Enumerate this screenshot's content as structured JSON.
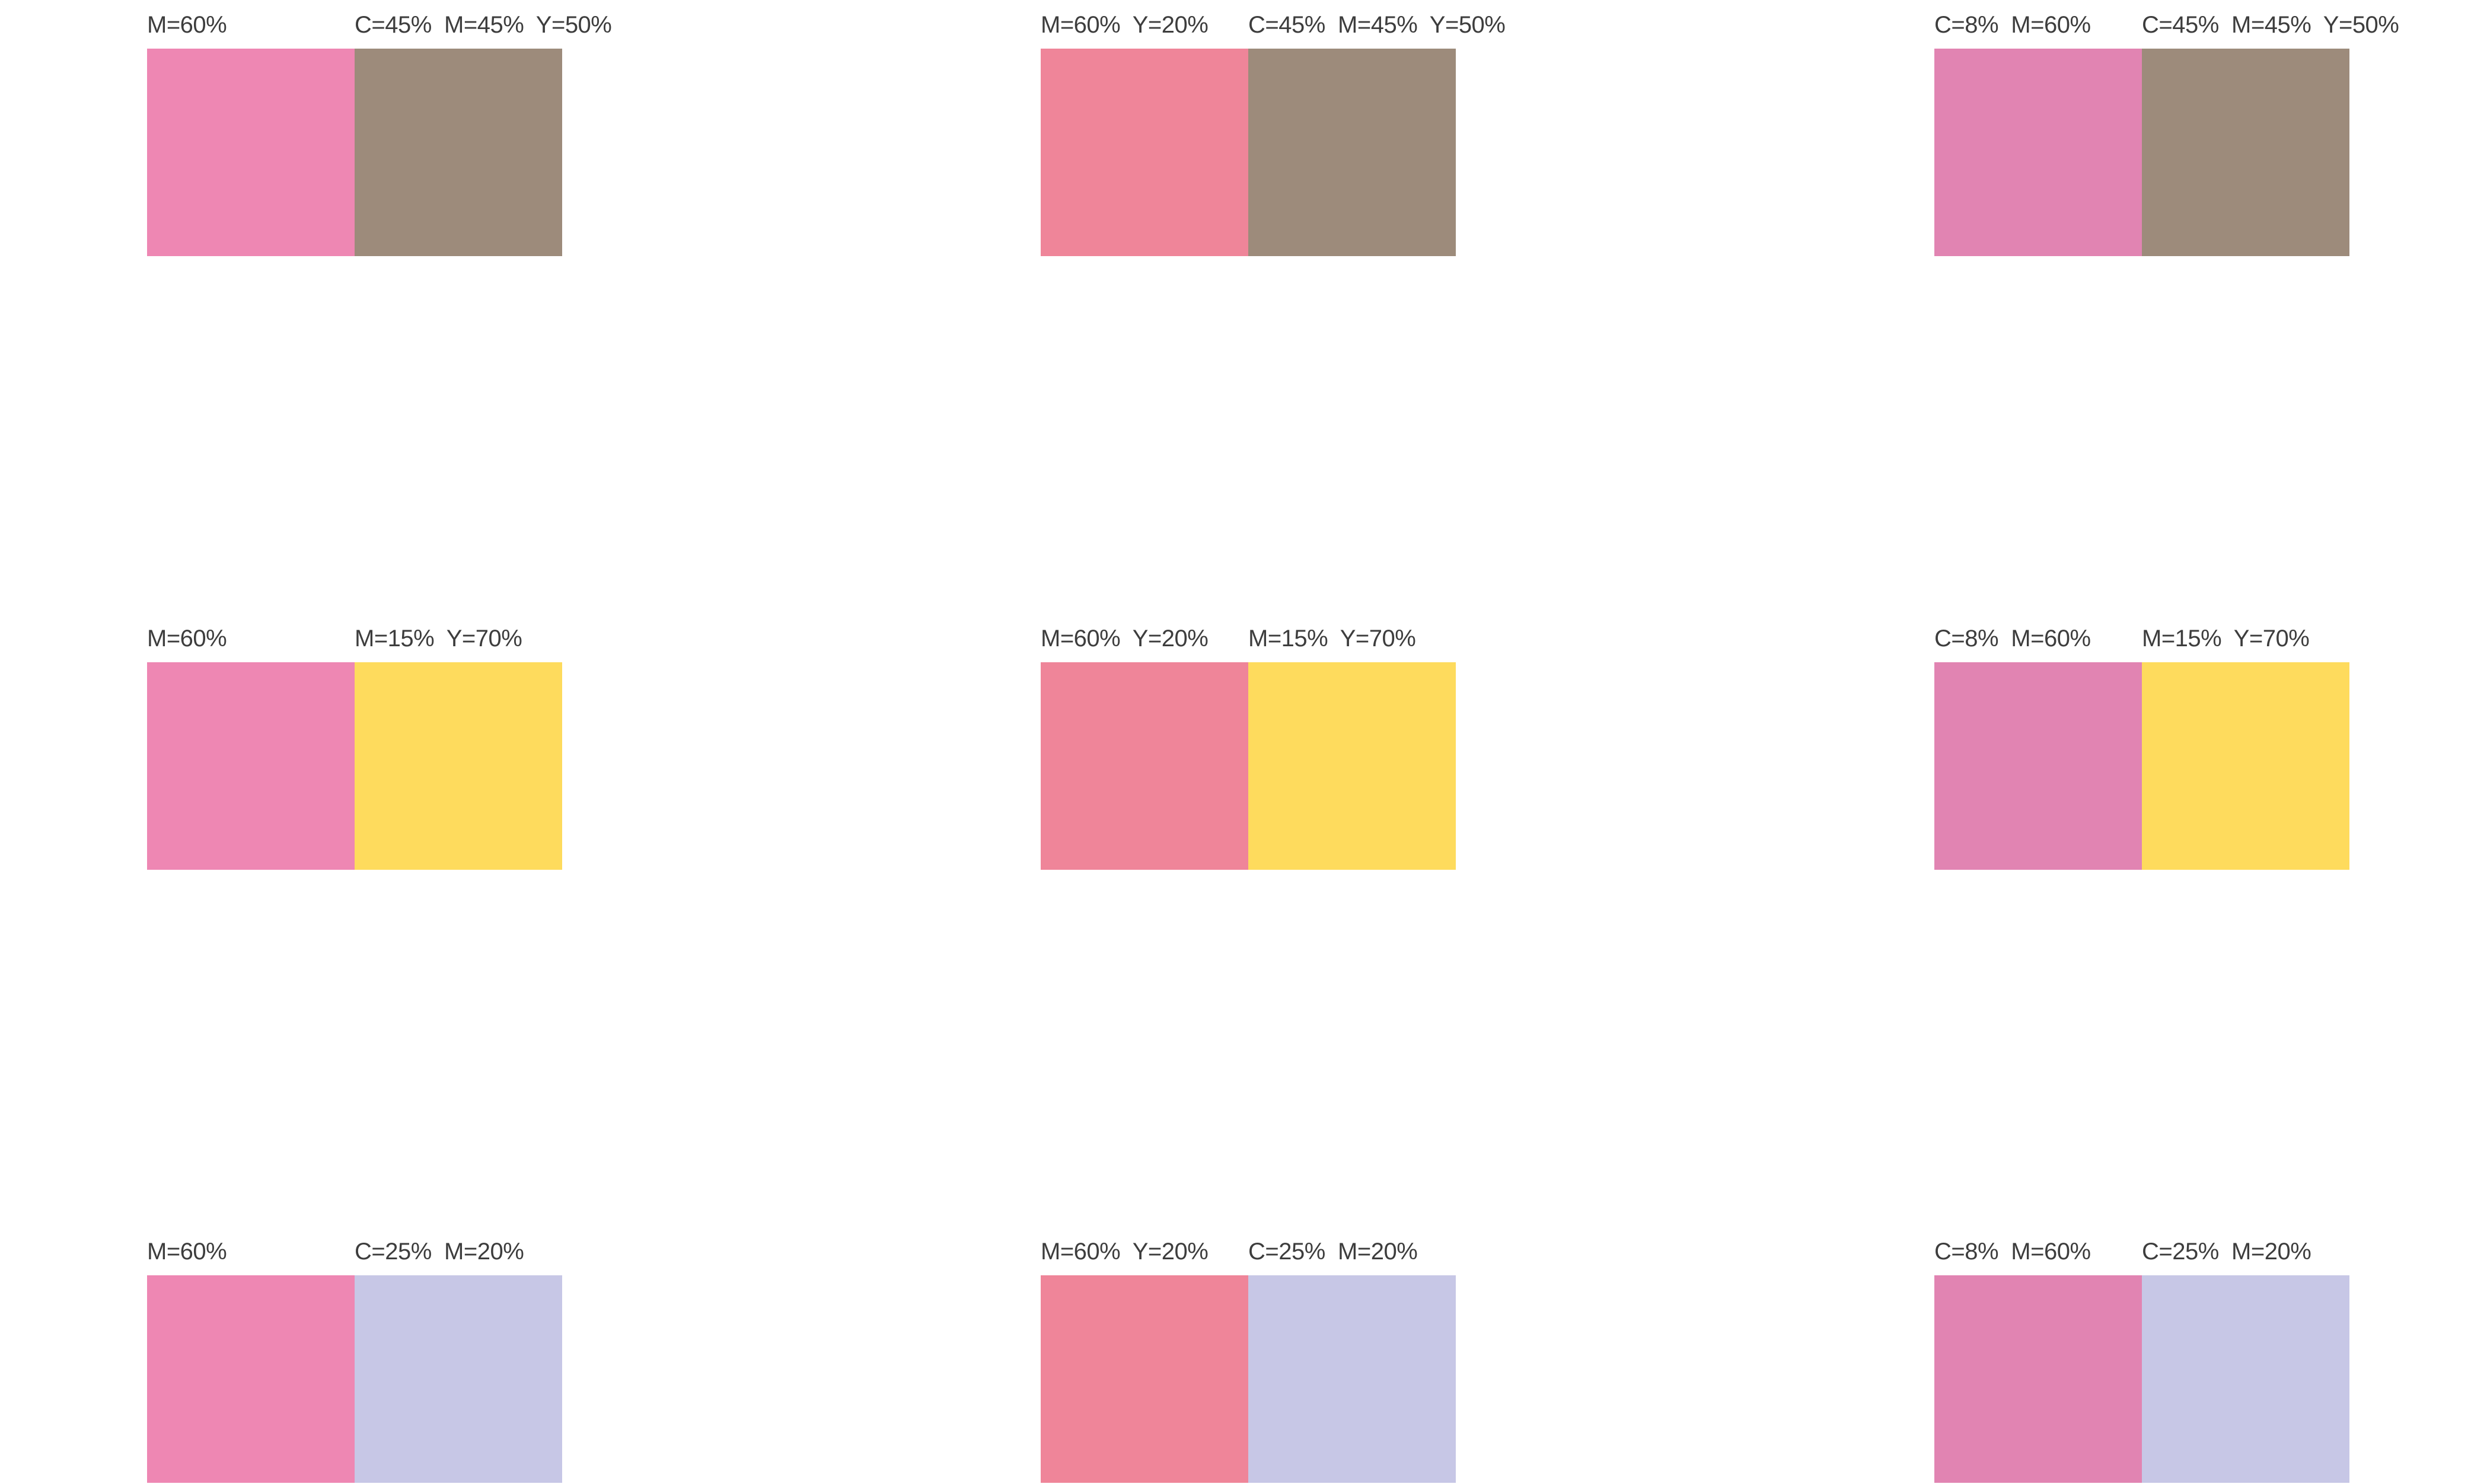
{
  "colors": {
    "pink_m60": "#ee87b3",
    "salmon_m60_y20": "#ef8599",
    "mauve_c8_m60": "#e184b2",
    "taupe_c45_m45_y50": "#9d8b7b",
    "yellow_m15_y70": "#fedb5d",
    "lavender_c25_m20": "#c7c7e6"
  },
  "pairs": [
    {
      "left": {
        "label": "M=60%",
        "color": "#ee87b3"
      },
      "right": {
        "label": "C=45%  M=45%  Y=50%",
        "color": "#9d8b7b"
      }
    },
    {
      "left": {
        "label": "M=60%  Y=20%",
        "color": "#ef8599"
      },
      "right": {
        "label": "C=45%  M=45%  Y=50%",
        "color": "#9d8b7b"
      }
    },
    {
      "left": {
        "label": "C=8%  M=60%",
        "color": "#e184b2"
      },
      "right": {
        "label": "C=45%  M=45%  Y=50%",
        "color": "#9d8b7b"
      }
    },
    {
      "left": {
        "label": "M=60%",
        "color": "#ee87b3"
      },
      "right": {
        "label": "M=15%  Y=70%",
        "color": "#fedb5d"
      }
    },
    {
      "left": {
        "label": "M=60%  Y=20%",
        "color": "#ef8599"
      },
      "right": {
        "label": "M=15%  Y=70%",
        "color": "#fedb5d"
      }
    },
    {
      "left": {
        "label": "C=8%  M=60%",
        "color": "#e184b2"
      },
      "right": {
        "label": "M=15%  Y=70%",
        "color": "#fedb5d"
      }
    },
    {
      "left": {
        "label": "M=60%",
        "color": "#ee87b3"
      },
      "right": {
        "label": "C=25%  M=20%",
        "color": "#c7c7e6"
      }
    },
    {
      "left": {
        "label": "M=60%  Y=20%",
        "color": "#ef8599"
      },
      "right": {
        "label": "C=25%  M=20%",
        "color": "#c7c7e6"
      }
    },
    {
      "left": {
        "label": "C=8%  M=60%",
        "color": "#e184b2"
      },
      "right": {
        "label": "C=25%  M=20%",
        "color": "#c7c7e6"
      }
    }
  ]
}
